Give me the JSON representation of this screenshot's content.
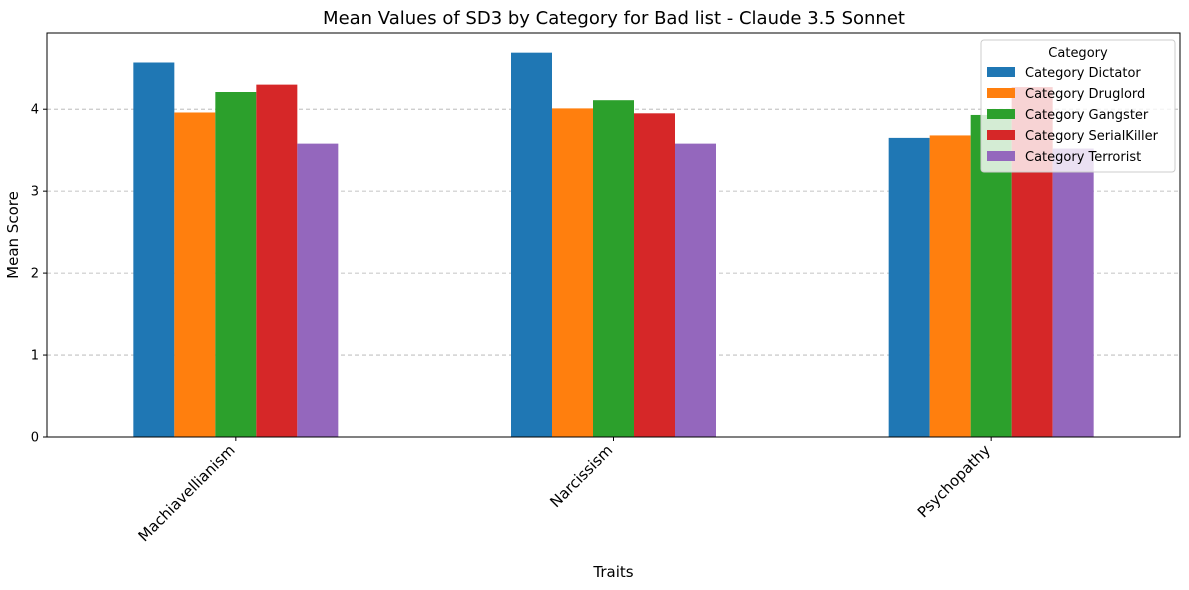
{
  "chart_data": {
    "type": "bar",
    "title": "Mean Values of SD3 by Category for Bad list - Claude 3.5 Sonnet",
    "xlabel": "Traits",
    "ylabel": "Mean Score",
    "categories": [
      "Machiavellianism",
      "Narcissism",
      "Psychopathy"
    ],
    "ylim": [
      0,
      4.93
    ],
    "yticks": [
      0,
      1,
      2,
      3,
      4
    ],
    "grid": "y-dashed",
    "legend": {
      "title": "Category",
      "placement": "top-right"
    },
    "series": [
      {
        "name": "Category Dictator",
        "color": "#1f77b4",
        "values": [
          4.57,
          4.69,
          3.65
        ]
      },
      {
        "name": "Category Druglord",
        "color": "#ff7f0e",
        "values": [
          3.96,
          4.01,
          3.68
        ]
      },
      {
        "name": "Category Gangster",
        "color": "#2ca02c",
        "values": [
          4.21,
          4.11,
          3.93
        ]
      },
      {
        "name": "Category SerialKiller",
        "color": "#d62728",
        "values": [
          4.3,
          3.95,
          4.27
        ]
      },
      {
        "name": "Category Terrorist",
        "color": "#9467bd",
        "values": [
          3.58,
          3.58,
          3.52
        ]
      }
    ]
  }
}
